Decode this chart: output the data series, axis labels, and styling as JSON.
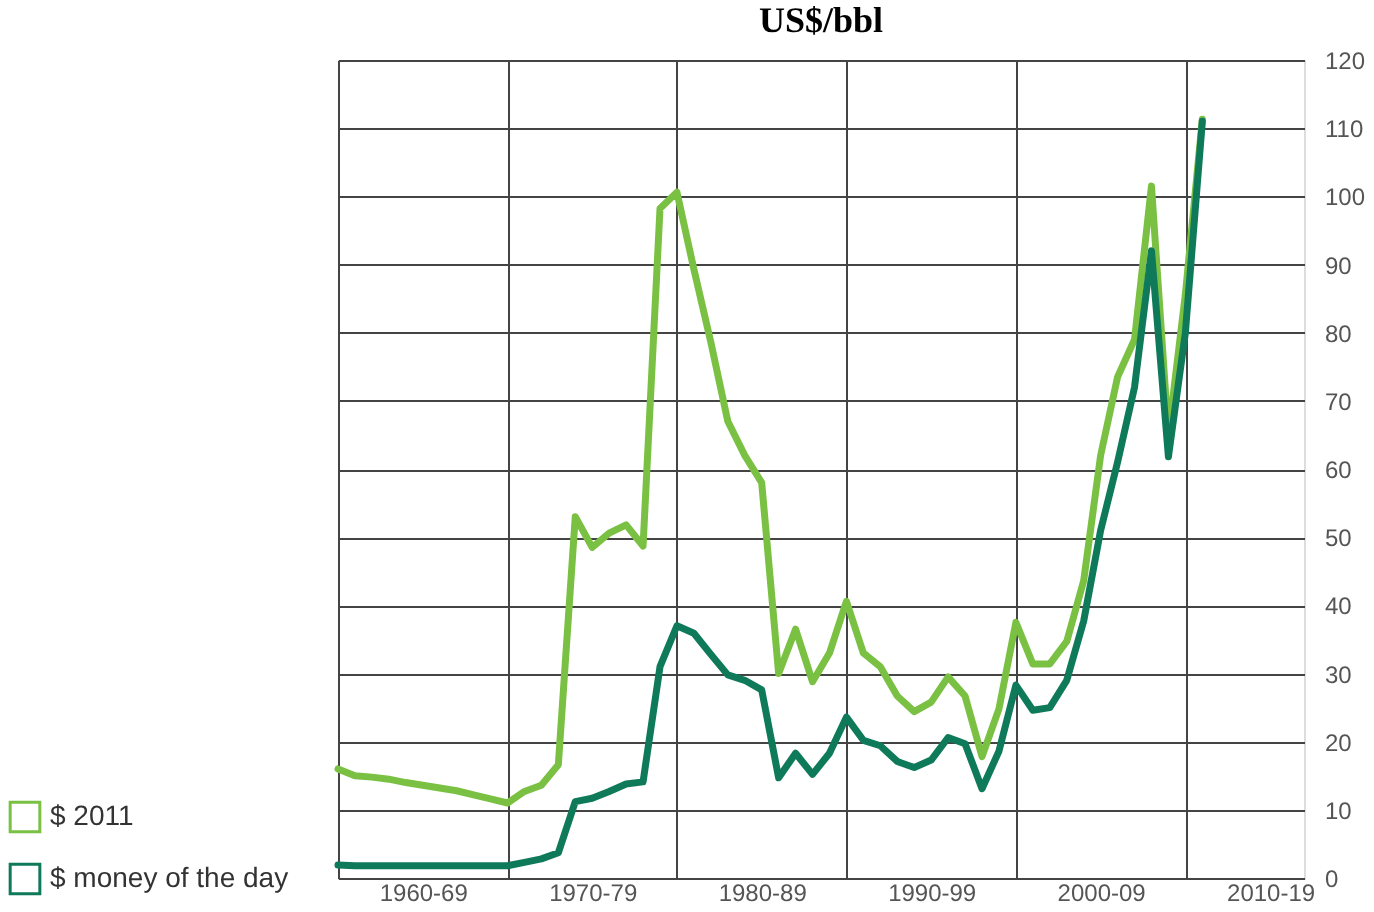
{
  "chart_data": {
    "type": "line",
    "title": "US$/bbl",
    "categories": [
      null,
      null,
      null,
      null,
      null,
      "1960-69",
      null,
      null,
      null,
      null,
      null,
      null,
      null,
      null,
      null,
      "1970-79",
      null,
      null,
      null,
      null,
      null,
      null,
      null,
      null,
      null,
      "1980-89",
      null,
      null,
      null,
      null,
      null,
      null,
      null,
      null,
      null,
      "1990-99",
      null,
      null,
      null,
      null,
      null,
      null,
      null,
      null,
      null,
      "2000-09",
      null,
      null,
      null,
      null,
      null,
      null,
      null,
      null,
      null,
      "2010-19",
      null,
      null
    ],
    "series": [
      {
        "name": "$ 2011",
        "color": "#7ac143",
        "values": [
          16,
          15,
          14.8,
          14.5,
          14,
          13.6,
          13.2,
          12.8,
          12.2,
          11.6,
          11,
          12.7,
          13.6,
          16.6,
          53,
          48.5,
          50.6,
          51.8,
          48.7,
          98.2,
          100.6,
          89.3,
          78.6,
          67,
          62,
          58,
          30,
          36.5,
          28.8,
          33,
          40.6,
          33,
          31,
          26.7,
          24.4,
          25.8,
          29.5,
          26.7,
          17.8,
          24.8,
          37.5,
          31.4,
          31.4,
          34.7,
          43.6,
          62,
          73.5,
          79,
          101.5,
          65,
          85.6,
          111.3,
          null,
          null,
          null,
          null,
          null,
          null
        ]
      },
      {
        "name": "$ money of the day",
        "color": "#0f7a5a",
        "values": [
          1.9,
          1.8,
          1.8,
          1.8,
          1.8,
          1.8,
          1.8,
          1.8,
          1.8,
          1.8,
          1.8,
          2.3,
          2.8,
          3.7,
          11.2,
          11.7,
          12.7,
          13.8,
          14.1,
          31,
          37,
          35.9,
          32.8,
          29.8,
          29,
          27.6,
          14.7,
          18.3,
          15.2,
          18.3,
          23.6,
          20.2,
          19.4,
          17.1,
          16.2,
          17.3,
          20.6,
          19.7,
          13.1,
          18.6,
          28.3,
          24.6,
          25,
          29,
          37.7,
          51,
          61,
          72,
          92,
          61.8,
          80,
          111,
          null,
          null,
          null,
          null,
          null,
          null
        ]
      }
    ],
    "ylim": [
      0,
      120
    ],
    "yticks": [
      0,
      10,
      20,
      30,
      40,
      50,
      60,
      70,
      80,
      90,
      100,
      110,
      120
    ],
    "grid": true,
    "legend": "bottom left",
    "marker": "none",
    "line_style": "solid"
  }
}
